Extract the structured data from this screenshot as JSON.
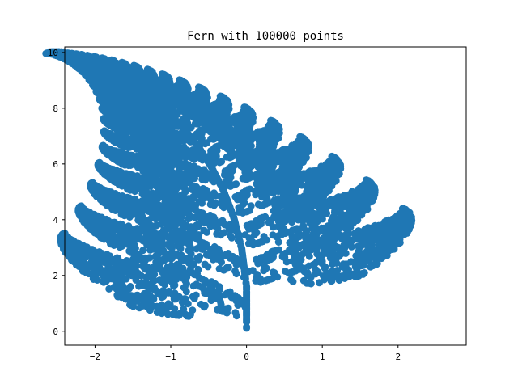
{
  "chart_data": {
    "type": "scatter",
    "title": "Fern with 100000 points",
    "xlabel": "",
    "ylabel": "",
    "xlim": [
      -2.4,
      2.9
    ],
    "ylim": [
      -0.5,
      10.2
    ],
    "xticks": [
      -2,
      -1,
      0,
      1,
      2
    ],
    "xtick_labels": [
      "−2",
      "−1",
      "0",
      "1",
      "2"
    ],
    "yticks": [
      0,
      2,
      4,
      6,
      8,
      10
    ],
    "ytick_labels": [
      "0",
      "2",
      "4",
      "6",
      "8",
      "10"
    ],
    "grid": false,
    "series": [
      {
        "color": "#1f77b4",
        "points": 100000,
        "pattern": "barnsley-fern",
        "x_range": [
          -2.2,
          2.7
        ],
        "y_range": [
          0,
          10
        ]
      }
    ]
  }
}
